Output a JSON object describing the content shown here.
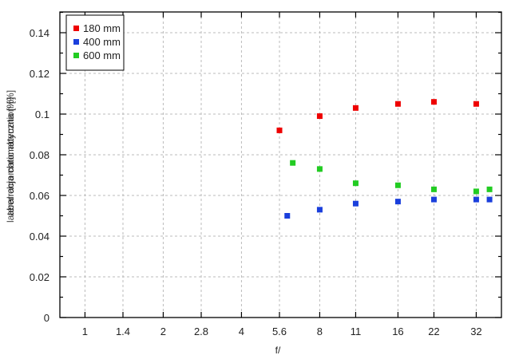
{
  "chart_data": {
    "type": "scatter",
    "title": "",
    "xlabel": "f/",
    "ylabel": "aberracja chromatyczna [%]",
    "ylabel_overlap": "lateral chromatic aberration [%]",
    "x_scale": "log2",
    "x_tick_labels": [
      "1",
      "1.4",
      "2",
      "2.8",
      "4",
      "5.6",
      "8",
      "11",
      "16",
      "22",
      "32"
    ],
    "x_ticks": [
      1,
      1.4,
      2,
      2.8,
      4,
      5.6,
      8,
      11,
      16,
      22,
      32
    ],
    "xlim": [
      0.8,
      40
    ],
    "y_tick_labels": [
      "0",
      "0.02",
      "0.04",
      "0.06",
      "0.08",
      "0.1",
      "0.12",
      "0.14"
    ],
    "y_ticks": [
      0,
      0.02,
      0.04,
      0.06,
      0.08,
      0.1,
      0.12,
      0.14
    ],
    "ylim": [
      0,
      0.15
    ],
    "grid": true,
    "legend_position": "top-left",
    "series": [
      {
        "name": "180 mm",
        "color": "#ee0000",
        "points": [
          {
            "x": 5.6,
            "y": 0.092
          },
          {
            "x": 8,
            "y": 0.099
          },
          {
            "x": 11,
            "y": 0.103
          },
          {
            "x": 16,
            "y": 0.105
          },
          {
            "x": 22,
            "y": 0.106
          },
          {
            "x": 32,
            "y": 0.105
          }
        ]
      },
      {
        "name": "400 mm",
        "color": "#1a3fdc",
        "points": [
          {
            "x": 6.0,
            "y": 0.05
          },
          {
            "x": 8,
            "y": 0.053
          },
          {
            "x": 11,
            "y": 0.056
          },
          {
            "x": 16,
            "y": 0.057
          },
          {
            "x": 22,
            "y": 0.058
          },
          {
            "x": 32,
            "y": 0.058
          },
          {
            "x": 36,
            "y": 0.058
          }
        ]
      },
      {
        "name": "600 mm",
        "color": "#22cc22",
        "points": [
          {
            "x": 6.3,
            "y": 0.076
          },
          {
            "x": 8,
            "y": 0.073
          },
          {
            "x": 11,
            "y": 0.066
          },
          {
            "x": 16,
            "y": 0.065
          },
          {
            "x": 22,
            "y": 0.063
          },
          {
            "x": 32,
            "y": 0.062
          },
          {
            "x": 36,
            "y": 0.063
          }
        ]
      }
    ]
  },
  "legend": {
    "items": [
      {
        "label": "180 mm",
        "color": "#ee0000"
      },
      {
        "label": "400 mm",
        "color": "#1a3fdc"
      },
      {
        "label": "600 mm",
        "color": "#22cc22"
      }
    ]
  },
  "axes": {
    "xlabel": "f/",
    "ylabel": "aberracja chromatyczna [%]",
    "ylabel_overlap": "lateral chromatic aberration [%]"
  }
}
